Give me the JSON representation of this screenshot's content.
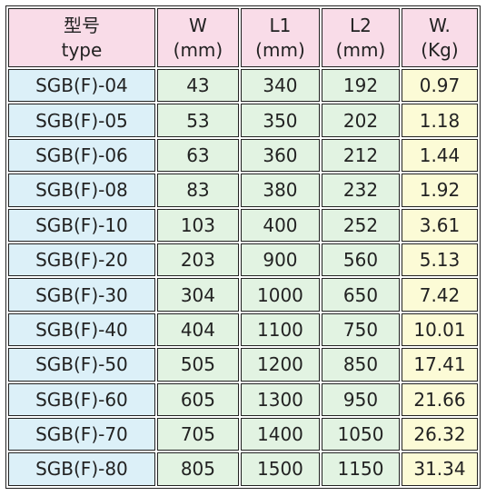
{
  "table": {
    "header": [
      [
        "型号",
        "type"
      ],
      [
        "W",
        "(mm)"
      ],
      [
        "L1",
        "(mm)"
      ],
      [
        "L2",
        "(mm)"
      ],
      [
        "W.",
        "(Kg)"
      ]
    ],
    "rows": [
      [
        "SGB(F)-04",
        "43",
        "340",
        "192",
        "0.97"
      ],
      [
        "SGB(F)-05",
        "53",
        "350",
        "202",
        "1.18"
      ],
      [
        "SGB(F)-06",
        "63",
        "360",
        "212",
        "1.44"
      ],
      [
        "SGB(F)-08",
        "83",
        "380",
        "232",
        "1.92"
      ],
      [
        "SGB(F)-10",
        "103",
        "400",
        "252",
        "3.61"
      ],
      [
        "SGB(F)-20",
        "203",
        "900",
        "560",
        "5.13"
      ],
      [
        "SGB(F)-30",
        "304",
        "1000",
        "650",
        "7.42"
      ],
      [
        "SGB(F)-40",
        "404",
        "1100",
        "750",
        "10.01"
      ],
      [
        "SGB(F)-50",
        "505",
        "1200",
        "850",
        "17.41"
      ],
      [
        "SGB(F)-60",
        "605",
        "1300",
        "950",
        "21.66"
      ],
      [
        "SGB(F)-70",
        "705",
        "1400",
        "1050",
        "26.32"
      ],
      [
        "SGB(F)-80",
        "805",
        "1500",
        "1150",
        "31.34"
      ]
    ]
  }
}
